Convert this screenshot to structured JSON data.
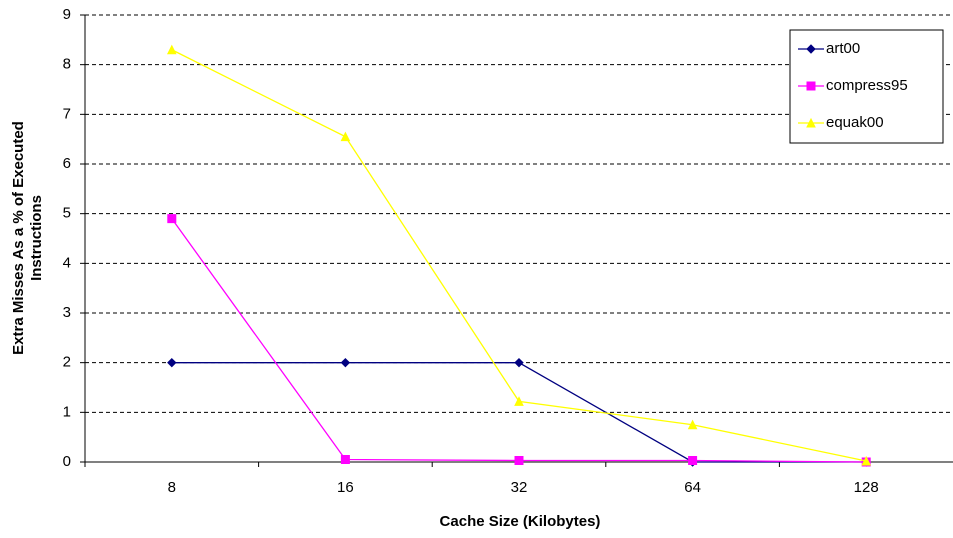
{
  "chart_data": {
    "type": "line",
    "xlabel": "Cache Size (Kilobytes)",
    "ylabel": "Extra Misses As a % of Executed Instructions",
    "categories": [
      "8",
      "16",
      "32",
      "64",
      "128"
    ],
    "series": [
      {
        "name": "art00",
        "color": "#000080",
        "marker": "diamond",
        "values": [
          2,
          2,
          2,
          0,
          0
        ]
      },
      {
        "name": "compress95",
        "color": "#ff00ff",
        "marker": "square",
        "values": [
          4.9,
          0.05,
          0.03,
          0.03,
          0
        ]
      },
      {
        "name": "equak00",
        "color": "#ffff00",
        "marker": "triangle",
        "values": [
          8.3,
          6.55,
          1.22,
          0.75,
          0.02
        ]
      }
    ],
    "ylim": [
      0,
      9
    ],
    "yticks": [
      0,
      1,
      2,
      3,
      4,
      5,
      6,
      7,
      8,
      9
    ],
    "grid": true,
    "legend": "top-right"
  }
}
